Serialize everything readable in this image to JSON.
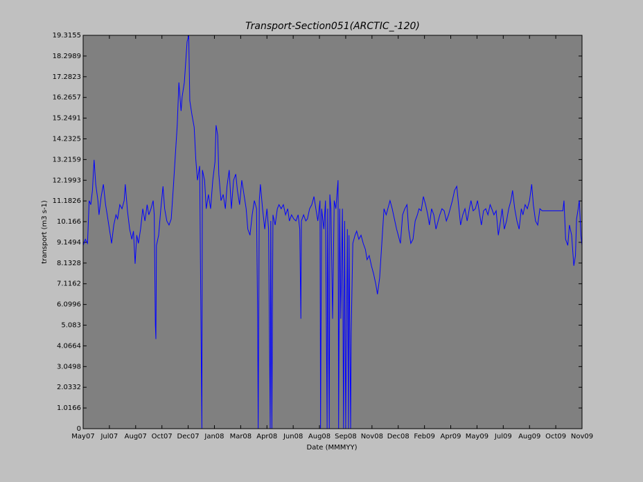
{
  "chart_data": {
    "type": "line",
    "title": "Transport-Section051(ARCTIC_-120)",
    "x_label": "Date (MMMYY)",
    "y_label": "transport (m3 s-1)",
    "xlim": [
      0,
      912
    ],
    "xticks": [
      {
        "value": 0,
        "label": "May07"
      },
      {
        "value": 48,
        "label": "Jul07"
      },
      {
        "value": 96,
        "label": "Aug07"
      },
      {
        "value": 144,
        "label": "Oct07"
      },
      {
        "value": 192,
        "label": "Dec07"
      },
      {
        "value": 240,
        "label": "Jan08"
      },
      {
        "value": 288,
        "label": "Mar08"
      },
      {
        "value": 336,
        "label": "Apr08"
      },
      {
        "value": 384,
        "label": "Jun08"
      },
      {
        "value": 432,
        "label": "Aug08"
      },
      {
        "value": 480,
        "label": "Sep08"
      },
      {
        "value": 528,
        "label": "Nov08"
      },
      {
        "value": 576,
        "label": "Dec08"
      },
      {
        "value": 624,
        "label": "Feb09"
      },
      {
        "value": 672,
        "label": "Apr09"
      },
      {
        "value": 720,
        "label": "May09"
      },
      {
        "value": 768,
        "label": "Jul09"
      },
      {
        "value": 816,
        "label": "Aug09"
      },
      {
        "value": 864,
        "label": "Oct09"
      },
      {
        "value": 912,
        "label": "Nov09"
      }
    ],
    "ylim": [
      0,
      19.3155
    ],
    "yticks": [
      0,
      1.0166,
      2.0332,
      3.0498,
      4.0664,
      5.083,
      6.0996,
      7.1162,
      8.1328,
      9.1494,
      10.166,
      11.1826,
      12.1993,
      13.2159,
      14.2325,
      15.2491,
      16.2657,
      17.2823,
      18.2989,
      19.3155
    ],
    "grid": false,
    "plot_background": "#808080",
    "series": [
      {
        "name": "transport",
        "color": "#0000ff",
        "x": [
          0,
          4,
          8,
          11,
          14,
          17,
          20,
          23,
          27,
          29,
          33,
          37,
          41,
          44,
          48,
          52,
          56,
          60,
          63,
          67,
          71,
          75,
          77,
          81,
          85,
          89,
          92,
          95,
          98,
          101,
          105,
          109,
          113,
          117,
          120,
          124,
          128,
          130,
          132,
          133,
          134,
          138,
          142,
          146,
          149,
          153,
          157,
          161,
          165,
          168,
          172,
          175,
          179,
          181,
          185,
          187,
          190,
          193,
          195,
          199,
          203,
          206,
          209,
          213,
          215,
          217,
          218,
          222,
          225,
          229,
          233,
          237,
          241,
          243,
          246,
          248,
          252,
          256,
          260,
          263,
          267,
          271,
          275,
          279,
          282,
          286,
          290,
          294,
          298,
          301,
          305,
          309,
          313,
          317,
          319,
          320,
          322,
          324,
          328,
          332,
          336,
          339,
          342,
          343,
          345,
          346,
          347,
          351,
          355,
          358,
          362,
          366,
          370,
          374,
          377,
          381,
          385,
          389,
          393,
          396,
          398,
          399,
          403,
          407,
          410,
          414,
          418,
          422,
          426,
          429,
          433,
          434,
          436,
          440,
          443,
          446,
          447,
          450,
          451,
          453,
          456,
          459,
          462,
          466,
          467,
          469,
          471,
          474,
          476,
          478,
          480,
          483,
          485,
          486,
          489,
          490,
          493,
          497,
          500,
          504,
          508,
          512,
          516,
          519,
          523,
          527,
          531,
          535,
          538,
          542,
          546,
          550,
          554,
          557,
          561,
          565,
          569,
          573,
          576,
          580,
          584,
          588,
          592,
          595,
          599,
          603,
          607,
          611,
          614,
          618,
          622,
          626,
          630,
          633,
          637,
          641,
          645,
          649,
          652,
          656,
          660,
          664,
          668,
          671,
          675,
          679,
          683,
          687,
          690,
          694,
          698,
          702,
          706,
          709,
          713,
          717,
          721,
          725,
          728,
          732,
          736,
          740,
          744,
          747,
          751,
          755,
          759,
          763,
          766,
          770,
          774,
          778,
          782,
          785,
          789,
          793,
          797,
          801,
          804,
          808,
          812,
          816,
          820,
          823,
          827,
          831,
          835,
          839,
          877,
          879,
          882,
          886,
          889,
          893,
          897,
          900,
          902,
          905,
          907,
          910,
          912
        ],
        "values": [
          9.0,
          9.3,
          9.1,
          11.2,
          11.0,
          11.7,
          13.2,
          12.0,
          11.2,
          10.5,
          11.4,
          12.0,
          11.0,
          10.5,
          9.8,
          9.1,
          10.0,
          10.5,
          10.3,
          11.0,
          10.8,
          11.2,
          12.0,
          10.7,
          9.8,
          9.3,
          9.7,
          8.1,
          9.5,
          9.1,
          9.8,
          10.8,
          10.2,
          11.0,
          10.5,
          10.8,
          11.2,
          10.5,
          5.1,
          4.4,
          9.0,
          9.5,
          10.8,
          11.9,
          10.8,
          10.2,
          10.0,
          10.3,
          11.9,
          13.2,
          14.9,
          17.0,
          15.6,
          16.3,
          17.0,
          17.8,
          19.0,
          19.3,
          16.1,
          15.4,
          14.8,
          13.2,
          12.2,
          12.9,
          6.4,
          0,
          12.7,
          12.2,
          10.8,
          11.5,
          10.8,
          12.2,
          13.1,
          14.9,
          14.4,
          12.5,
          11.2,
          11.5,
          10.8,
          11.9,
          12.7,
          10.8,
          12.2,
          12.5,
          11.7,
          11.0,
          12.2,
          11.5,
          10.8,
          9.8,
          9.5,
          10.5,
          11.2,
          10.8,
          5.4,
          0,
          11.2,
          12.0,
          10.8,
          9.8,
          10.8,
          9.8,
          0,
          10.2,
          0,
          5.4,
          10.5,
          10.0,
          10.8,
          11.0,
          10.8,
          11.0,
          10.5,
          10.8,
          10.2,
          10.5,
          10.3,
          10.2,
          10.5,
          9.8,
          5.4,
          10.2,
          10.5,
          10.2,
          10.3,
          10.8,
          11.0,
          11.4,
          10.7,
          10.2,
          11.2,
          0,
          10.8,
          9.8,
          11.2,
          0,
          10.8,
          0,
          11.5,
          10.8,
          5.4,
          11.2,
          10.8,
          12.2,
          0,
          10.8,
          5.4,
          10.8,
          0,
          10.2,
          0,
          9.8,
          0,
          9.5,
          0,
          4.7,
          9.1,
          9.5,
          9.7,
          9.3,
          9.5,
          9.1,
          8.8,
          8.3,
          8.5,
          8.0,
          7.6,
          7.1,
          6.6,
          7.4,
          9.1,
          10.8,
          10.5,
          10.8,
          11.2,
          10.8,
          10.3,
          9.8,
          9.5,
          9.1,
          10.5,
          10.8,
          11.0,
          9.8,
          9.1,
          9.3,
          10.2,
          10.5,
          10.8,
          10.7,
          11.4,
          11.0,
          10.5,
          10.0,
          10.8,
          10.5,
          9.8,
          10.2,
          10.5,
          10.8,
          10.7,
          10.2,
          10.5,
          10.8,
          11.2,
          11.7,
          11.9,
          10.8,
          10.0,
          10.5,
          10.8,
          10.2,
          10.8,
          11.2,
          10.7,
          10.8,
          11.2,
          10.5,
          10.0,
          10.7,
          10.8,
          10.5,
          11.0,
          10.8,
          10.5,
          10.7,
          9.5,
          10.2,
          10.8,
          9.8,
          10.2,
          10.8,
          11.2,
          11.7,
          10.8,
          10.2,
          9.8,
          10.8,
          10.5,
          11.0,
          10.8,
          11.2,
          12.0,
          11.0,
          10.2,
          10.0,
          10.8,
          10.7,
          10.7,
          11.2,
          9.3,
          9.0,
          10.0,
          9.5,
          8.0,
          8.5,
          10.3,
          10.8,
          11.2,
          9.5,
          9.0
        ]
      }
    ]
  }
}
